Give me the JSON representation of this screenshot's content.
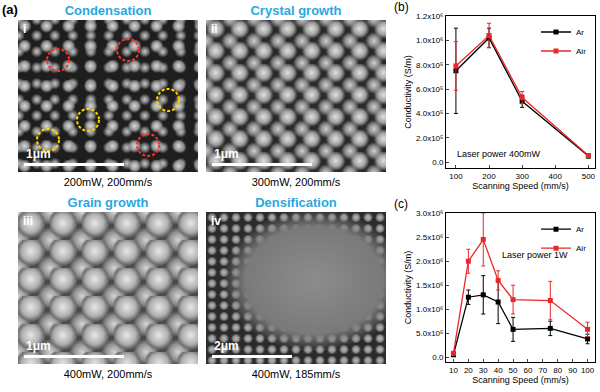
{
  "sem_images": {
    "panel": "(a)",
    "images": [
      {
        "numeral": "i",
        "title": "Condensation",
        "scale_bar": "1μm",
        "caption": "200mW, 200mm/s"
      },
      {
        "numeral": "ii",
        "title": "Crystal growth",
        "scale_bar": "1μm",
        "caption": "300mW, 200mm/s"
      },
      {
        "numeral": "iii",
        "title": "Grain growth",
        "scale_bar": "1μm",
        "caption": "400mW, 200mm/s"
      },
      {
        "numeral": "iv",
        "title": "Densification",
        "scale_bar": "2μm",
        "caption": "400mW, 185mm/s"
      }
    ]
  },
  "chart_data": [
    {
      "type": "line",
      "panel": "(b)",
      "x_label": "Scanning Speed (mm/s)",
      "y_label": "Conductivity (S/m)",
      "annotations": [
        "Laser power 400mW"
      ],
      "x": [
        100,
        200,
        300,
        500
      ],
      "series": [
        {
          "name": "Ar",
          "color": "#000000",
          "marker": "square",
          "line_style": "solid",
          "values": [
            750000,
            1020000,
            500000,
            50000
          ],
          "error": [
            350000,
            80000,
            50000,
            15000
          ]
        },
        {
          "name": "Air",
          "color": "#e8282b",
          "marker": "square",
          "line_style": "solid",
          "values": [
            790000,
            1040000,
            530000,
            55000
          ],
          "error": [
            200000,
            100000,
            50000,
            15000
          ]
        }
      ],
      "xlim": [
        70,
        520
      ],
      "xticks": [
        100,
        200,
        300,
        400,
        500
      ],
      "ylim": [
        -50000,
        1200000
      ],
      "yticks": [
        {
          "value": 0,
          "label": "0.0"
        },
        {
          "value": 200000,
          "label": "2.0x10⁵"
        },
        {
          "value": 400000,
          "label": "4.0x10⁵"
        },
        {
          "value": 600000,
          "label": "6.0x10⁵"
        },
        {
          "value": 800000,
          "label": "8.0x10⁵"
        },
        {
          "value": 1000000,
          "label": "1.0x10⁶"
        },
        {
          "value": 1200000,
          "label": "1.2x10⁶"
        }
      ],
      "grid": false,
      "legend": "upper right"
    },
    {
      "type": "line",
      "panel": "(c)",
      "x_label": "Scanning Speed (mm/s)",
      "y_label": "Conductivity (S/m)",
      "annotations": [
        "Laser power 1W"
      ],
      "x": [
        10,
        20,
        30,
        40,
        50,
        75,
        100
      ],
      "series": [
        {
          "name": "Ar",
          "color": "#000000",
          "marker": "square",
          "line_style": "solid",
          "values": [
            50000,
            1250000,
            1300000,
            1150000,
            580000,
            600000,
            380000
          ],
          "error": [
            30000,
            150000,
            400000,
            450000,
            250000,
            150000,
            100000
          ]
        },
        {
          "name": "Air",
          "color": "#e8282b",
          "marker": "square",
          "line_style": "solid",
          "values": [
            80000,
            2000000,
            2450000,
            1600000,
            1200000,
            1180000,
            580000
          ],
          "error": [
            30000,
            250000,
            550000,
            200000,
            300000,
            400000,
            150000
          ]
        }
      ],
      "xlim": [
        5,
        105
      ],
      "xticks": [
        10,
        20,
        30,
        40,
        50,
        60,
        70,
        80,
        90,
        100
      ],
      "ylim": [
        -100000,
        3000000
      ],
      "yticks": [
        {
          "value": 0,
          "label": "0.0"
        },
        {
          "value": 500000,
          "label": "5.0x10⁵"
        },
        {
          "value": 1000000,
          "label": "1.0x10⁶"
        },
        {
          "value": 1500000,
          "label": "1.5x10⁶"
        },
        {
          "value": 2000000,
          "label": "2.0x10⁶"
        },
        {
          "value": 2500000,
          "label": "2.5x10⁶"
        },
        {
          "value": 3000000,
          "label": "3.0x10⁶"
        }
      ],
      "grid": false,
      "legend": "upper right"
    }
  ]
}
